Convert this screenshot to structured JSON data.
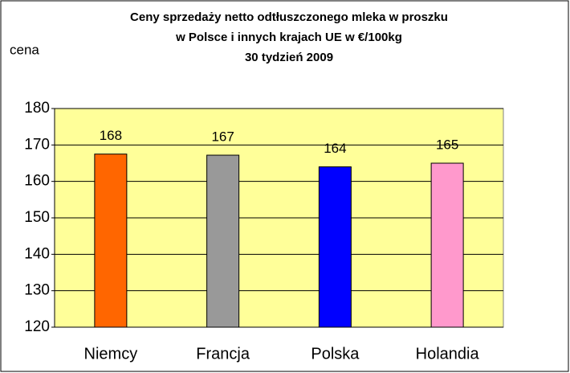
{
  "chart_data": {
    "type": "bar",
    "title": [
      "Ceny sprzedaży netto odtłuszczonego mleka w proszku",
      "w Polsce i innych krajach UE w €/100kg",
      "30 tydzień 2009"
    ],
    "y_label": "cena",
    "categories": [
      "Niemcy",
      "Francja",
      "Polska",
      "Holandia"
    ],
    "values": [
      167.5,
      167.2,
      164,
      165
    ],
    "value_labels": [
      "168",
      "167",
      "164",
      "165"
    ],
    "colors": [
      "#ff6600",
      "#999999",
      "#0000ff",
      "#ff99cc"
    ],
    "ylim": [
      120,
      180
    ],
    "yticks": [
      120,
      130,
      140,
      150,
      160,
      170,
      180
    ],
    "grid": true,
    "plot_background": "#ffff99"
  }
}
